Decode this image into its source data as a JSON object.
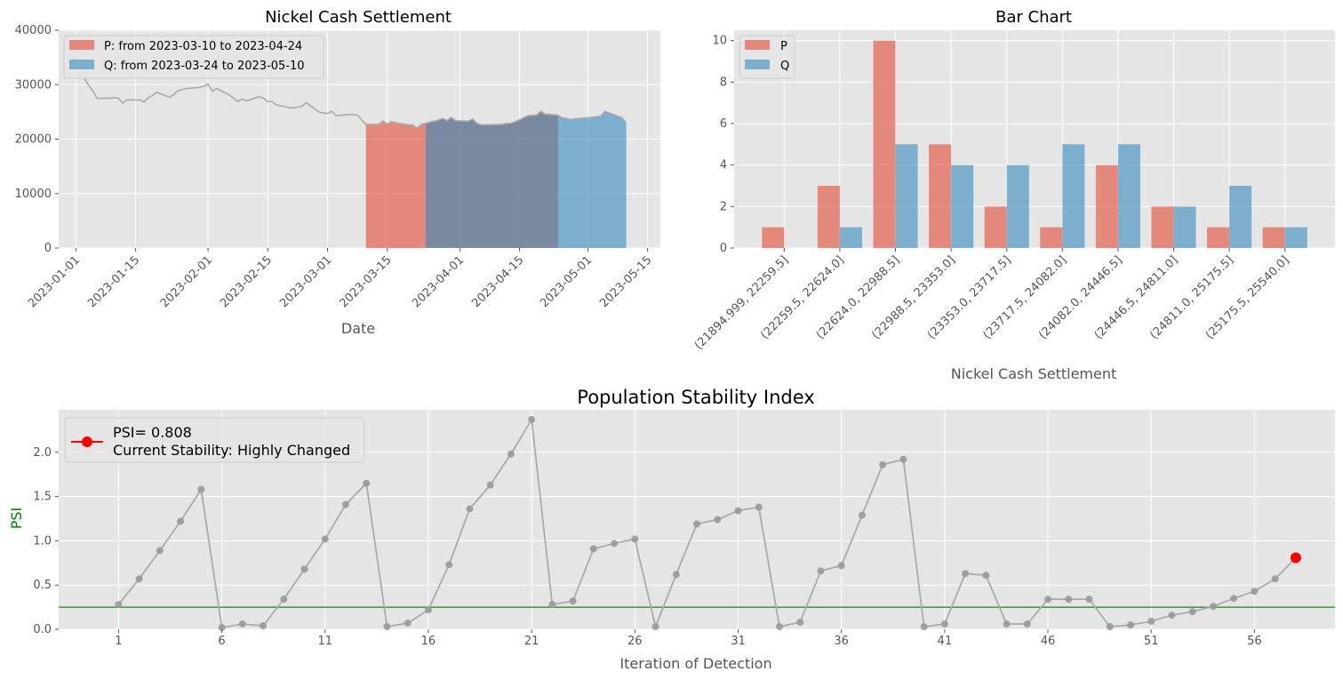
{
  "figure": {
    "colors": {
      "panel_bg": "#e5e5e5",
      "grid": "#ffffff",
      "tick_text": "#555555",
      "title_text": "#000000",
      "p_color": "#e24a33",
      "q_color": "#348abd",
      "overlap_color": "#7a8aa4",
      "line_gray": "#aaaaaa",
      "psi_marker": "#ff0000",
      "threshold_green": "#339933",
      "ylabel_green": "#008000"
    }
  },
  "chart_data": [
    {
      "id": "nickel",
      "type": "area",
      "title": "Nickel Cash Settlement",
      "xlabel": "Date",
      "ylabel": "",
      "ylim": [
        0,
        40000
      ],
      "yticks": [
        0,
        10000,
        20000,
        30000,
        40000
      ],
      "xlim": [
        "2022-12-28",
        "2023-05-18"
      ],
      "xticks": [
        "2023-01-01",
        "2023-01-15",
        "2023-02-01",
        "2023-02-15",
        "2023-03-01",
        "2023-03-15",
        "2023-04-01",
        "2023-04-15",
        "2023-05-01",
        "2023-05-15"
      ],
      "grid": true,
      "legend_position": "top-left",
      "series": [
        {
          "name": "Nickel Cash Settlement",
          "x": [
            "2023-01-03",
            "2023-01-04",
            "2023-01-05",
            "2023-01-06",
            "2023-01-09",
            "2023-01-10",
            "2023-01-11",
            "2023-01-12",
            "2023-01-13",
            "2023-01-16",
            "2023-01-17",
            "2023-01-18",
            "2023-01-19",
            "2023-01-20",
            "2023-01-23",
            "2023-01-24",
            "2023-01-25",
            "2023-01-26",
            "2023-01-27",
            "2023-01-30",
            "2023-01-31",
            "2023-02-01",
            "2023-02-02",
            "2023-02-03",
            "2023-02-06",
            "2023-02-07",
            "2023-02-08",
            "2023-02-09",
            "2023-02-10",
            "2023-02-13",
            "2023-02-14",
            "2023-02-15",
            "2023-02-16",
            "2023-02-17",
            "2023-02-20",
            "2023-02-21",
            "2023-02-22",
            "2023-02-23",
            "2023-02-24",
            "2023-02-27",
            "2023-02-28",
            "2023-03-01",
            "2023-03-02",
            "2023-03-03",
            "2023-03-06",
            "2023-03-07",
            "2023-03-08",
            "2023-03-09",
            "2023-03-10",
            "2023-03-13",
            "2023-03-14",
            "2023-03-15",
            "2023-03-16",
            "2023-03-17",
            "2023-03-20",
            "2023-03-21",
            "2023-03-22",
            "2023-03-23",
            "2023-03-24",
            "2023-03-27",
            "2023-03-28",
            "2023-03-29",
            "2023-03-30",
            "2023-03-31",
            "2023-04-03",
            "2023-04-04",
            "2023-04-05",
            "2023-04-06",
            "2023-04-11",
            "2023-04-12",
            "2023-04-13",
            "2023-04-14",
            "2023-04-17",
            "2023-04-18",
            "2023-04-19",
            "2023-04-20",
            "2023-04-21",
            "2023-04-24",
            "2023-04-25",
            "2023-04-26",
            "2023-04-27",
            "2023-04-28",
            "2023-05-02",
            "2023-05-03",
            "2023-05-04",
            "2023-05-05",
            "2023-05-09",
            "2023-05-10"
          ],
          "y": [
            31200,
            29900,
            28900,
            27500,
            27500,
            27600,
            27500,
            26600,
            27200,
            27200,
            26800,
            27600,
            28000,
            28600,
            27700,
            28200,
            28900,
            29100,
            29300,
            29500,
            29700,
            30100,
            28800,
            29300,
            28100,
            27500,
            26900,
            27400,
            27000,
            27800,
            27500,
            26900,
            26900,
            26300,
            25800,
            25700,
            25900,
            26000,
            26700,
            25000,
            24800,
            24700,
            25100,
            24300,
            24500,
            24500,
            24400,
            23500,
            22700,
            22700,
            23300,
            22700,
            23200,
            23000,
            22600,
            22600,
            22000,
            22700,
            22900,
            23500,
            23800,
            23400,
            24000,
            23400,
            23300,
            23700,
            22900,
            22600,
            22700,
            22900,
            22900,
            23200,
            24300,
            24400,
            24400,
            25100,
            24600,
            24400,
            23900,
            23800,
            23600,
            23700,
            24000,
            24100,
            24200,
            25100,
            23900,
            23000
          ]
        }
      ],
      "highlights": [
        {
          "name": "P: from 2023-03-10 to 2023-04-24",
          "start": "2023-03-10",
          "end": "2023-04-24",
          "color": "#e24a33"
        },
        {
          "name": "Q: from 2023-03-24 to 2023-05-10",
          "start": "2023-03-24",
          "end": "2023-05-10",
          "color": "#348abd"
        }
      ]
    },
    {
      "id": "bars",
      "type": "bar",
      "title": "Bar Chart",
      "xlabel": "Nickel Cash Settlement",
      "ylabel": "",
      "ylim": [
        0,
        10.5
      ],
      "yticks": [
        0,
        2,
        4,
        6,
        8,
        10
      ],
      "grid": true,
      "legend_position": "top-left",
      "categories": [
        "(21894.999, 22259.5]",
        "(22259.5, 22624.0]",
        "(22624.0, 22988.5]",
        "(22988.5, 23353.0]",
        "(23353.0, 23717.5]",
        "(23717.5, 24082.0]",
        "(24082.0, 24446.5]",
        "(24446.5, 24811.0]",
        "(24811.0, 25175.5]",
        "(25175.5, 25540.0]"
      ],
      "series": [
        {
          "name": "P",
          "values": [
            1,
            3,
            10,
            5,
            2,
            1,
            4,
            2,
            1,
            1
          ],
          "color": "#e24a33"
        },
        {
          "name": "Q",
          "values": [
            0,
            1,
            5,
            4,
            4,
            5,
            5,
            2,
            3,
            1
          ],
          "color": "#348abd"
        }
      ]
    },
    {
      "id": "psi",
      "type": "line",
      "title": "Population Stability Index",
      "xlabel": "Iteration of Detection",
      "ylabel": "PSI",
      "xlim": [
        -1.9,
        59.9
      ],
      "ylim": [
        0,
        2.48
      ],
      "yticks": [
        0.0,
        0.5,
        1.0,
        1.5,
        2.0
      ],
      "ytick_labels": [
        "0.0",
        "0.5",
        "1.0",
        "1.5",
        "2.0"
      ],
      "xticks": [
        1,
        6,
        11,
        16,
        21,
        26,
        31,
        36,
        41,
        46,
        51,
        56
      ],
      "grid": true,
      "legend_position": "top-left",
      "threshold": 0.25,
      "series": [
        {
          "name": "PSI",
          "x": [
            1,
            2,
            3,
            4,
            5,
            6,
            7,
            8,
            9,
            10,
            11,
            12,
            13,
            14,
            15,
            16,
            17,
            18,
            19,
            20,
            21,
            22,
            23,
            24,
            25,
            26,
            27,
            28,
            29,
            30,
            31,
            32,
            33,
            34,
            35,
            36,
            37,
            38,
            39,
            40,
            41,
            42,
            43,
            44,
            45,
            46,
            47,
            48,
            49,
            50,
            51,
            52,
            53,
            54,
            55,
            56,
            57,
            58
          ],
          "y": [
            0.28,
            0.57,
            0.89,
            1.22,
            1.58,
            0.02,
            0.06,
            0.04,
            0.34,
            0.68,
            1.02,
            1.41,
            1.65,
            0.03,
            0.07,
            0.22,
            0.73,
            1.36,
            1.63,
            1.98,
            2.37,
            0.28,
            0.32,
            0.91,
            0.97,
            1.02,
            0.03,
            0.62,
            1.19,
            1.24,
            1.34,
            1.38,
            0.03,
            0.08,
            0.66,
            0.72,
            1.29,
            1.86,
            1.92,
            0.03,
            0.06,
            0.63,
            0.61,
            0.06,
            0.06,
            0.34,
            0.34,
            0.34,
            0.03,
            0.05,
            0.09,
            0.16,
            0.2,
            0.26,
            0.35,
            0.43,
            0.57,
            0.808
          ]
        }
      ],
      "current_point": {
        "x": 58,
        "y": 0.808
      },
      "legend": {
        "line1": "PSI= 0.808",
        "line2": "Current Stability: Highly Changed"
      }
    }
  ]
}
